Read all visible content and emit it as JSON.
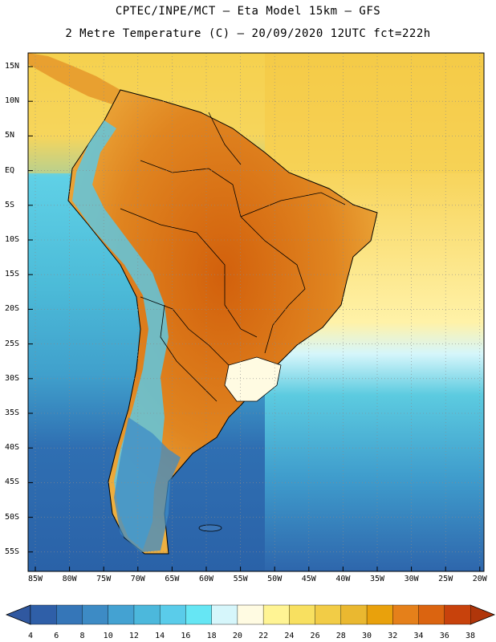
{
  "header": {
    "title_line1": "CPTEC/INPE/MCT –  Eta Model 15km – GFS",
    "title_line2": "2 Metre Temperature (C) – 20/09/2020 12UTC fct=222h"
  },
  "map": {
    "lat_labels": [
      "15N",
      "10N",
      "5N",
      "EQ",
      "5S",
      "10S",
      "15S",
      "20S",
      "25S",
      "30S",
      "35S",
      "40S",
      "45S",
      "50S",
      "55S"
    ],
    "lon_labels": [
      "85W",
      "80W",
      "75W",
      "70W",
      "65W",
      "60W",
      "55W",
      "50W",
      "45W",
      "40W",
      "35W",
      "30W",
      "25W",
      "20W"
    ],
    "colors": {
      "ocean_cold": "#2f6fb2",
      "ocean_mid": "#3fa6d0",
      "ocean_warm": "#5ccbe0",
      "ocean_trop": "#f7d860",
      "land_hot": "#d96a10",
      "land_warm": "#e8a030",
      "land_mild": "#f2c850"
    }
  },
  "colorbar": {
    "labels": [
      "4",
      "6",
      "8",
      "10",
      "12",
      "14",
      "16",
      "18",
      "20",
      "22",
      "24",
      "26",
      "28",
      "30",
      "32",
      "34",
      "36",
      "38"
    ],
    "colors": [
      "#2f5fa8",
      "#3576b8",
      "#3d8bc5",
      "#44a2d2",
      "#4cb8dc",
      "#5accea",
      "#66e6f4",
      "#d6f6fb",
      "#fffbe2",
      "#fff494",
      "#f8e060",
      "#f2cc46",
      "#eab830",
      "#e9a10c",
      "#e5801a",
      "#db6410",
      "#c8420c"
    ],
    "left_arrow_color": "#3058a0",
    "right_arrow_color": "#b0360a"
  }
}
